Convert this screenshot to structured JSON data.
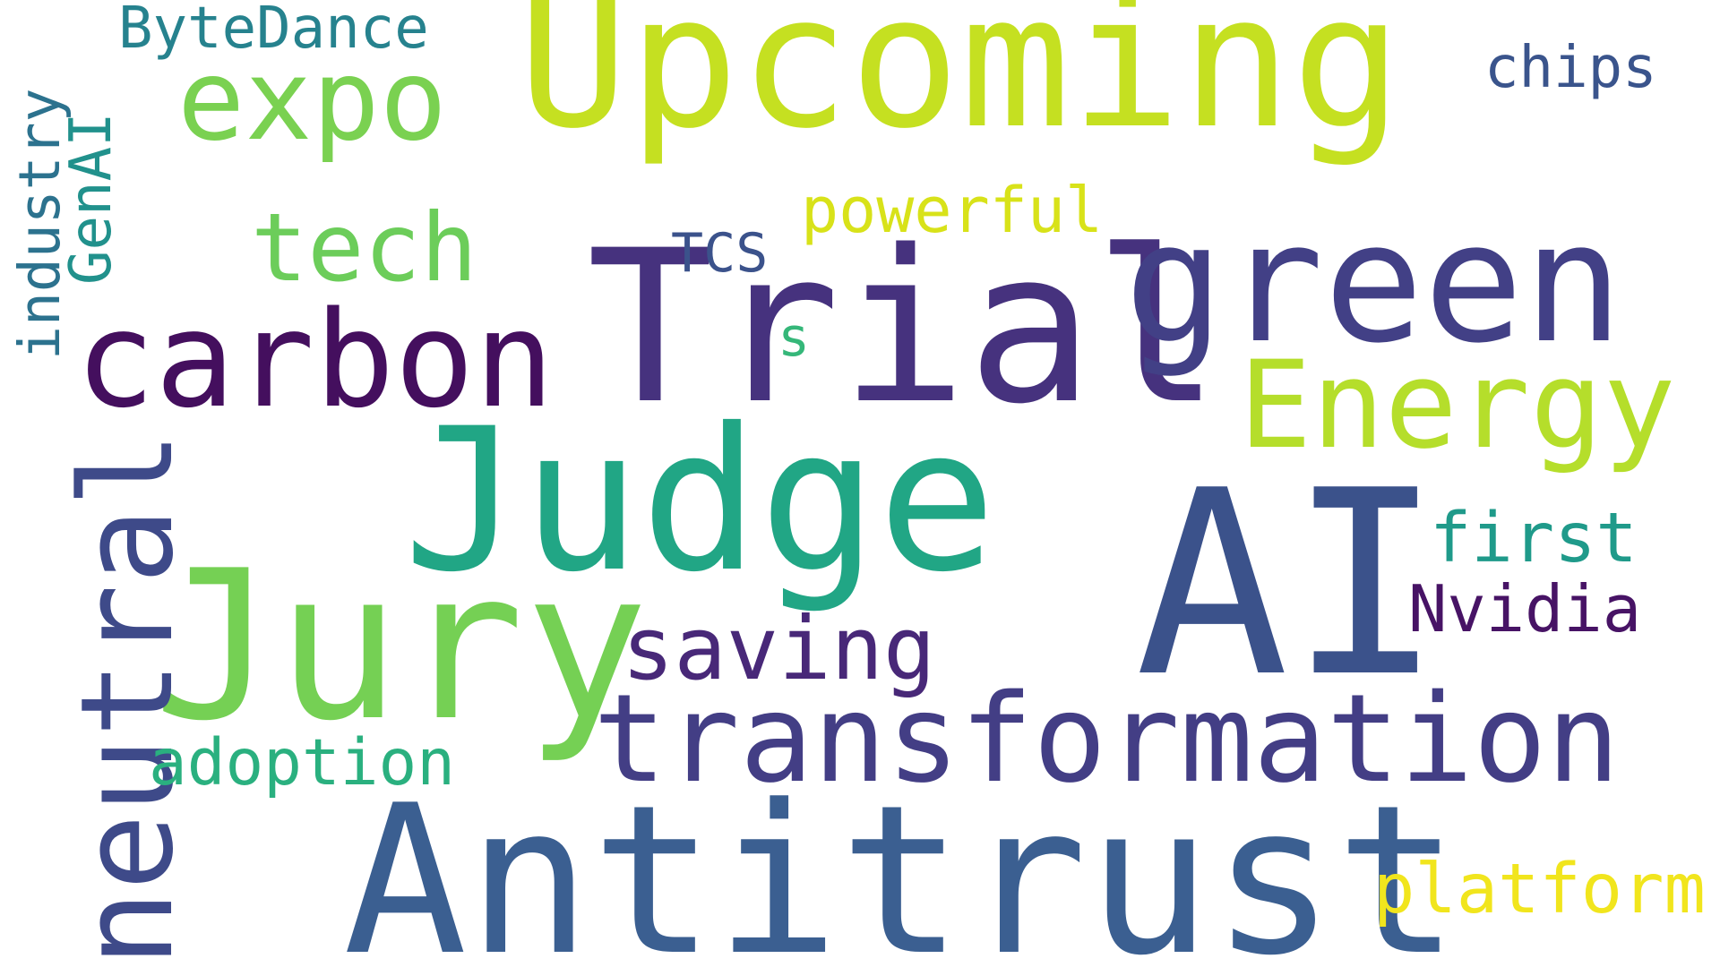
{
  "words": [
    {
      "text": "Upcoming",
      "color": "#c5e021"
    },
    {
      "text": "AI",
      "color": "#3b528b"
    },
    {
      "text": "Antitrust",
      "color": "#3b5f91"
    },
    {
      "text": "Trial",
      "color": "#46327e"
    },
    {
      "text": "green",
      "color": "#424086"
    },
    {
      "text": "Judge",
      "color": "#21a685"
    },
    {
      "text": "Jury",
      "color": "#75d054"
    },
    {
      "text": "transformation",
      "color": "#433e85"
    },
    {
      "text": "neutral",
      "color": "#3e4a89"
    },
    {
      "text": "carbon",
      "color": "#440f5e"
    },
    {
      "text": "Energy",
      "color": "#b5de2b"
    },
    {
      "text": "expo",
      "color": "#7ad151"
    },
    {
      "text": "saving",
      "color": "#482878"
    },
    {
      "text": "tech",
      "color": "#6ccd5a"
    },
    {
      "text": "platform",
      "color": "#f1e51d"
    },
    {
      "text": "powerful",
      "color": "#d8e219"
    },
    {
      "text": "first",
      "color": "#1f9a8a"
    },
    {
      "text": "Nvidia",
      "color": "#471365"
    },
    {
      "text": "adoption",
      "color": "#2ab07f"
    },
    {
      "text": "chips",
      "color": "#3a548c"
    },
    {
      "text": "ByteDance",
      "color": "#26828e"
    },
    {
      "text": "industry",
      "color": "#2c728e"
    },
    {
      "text": "GenAI",
      "color": "#21918c"
    },
    {
      "text": "TCS",
      "color": "#3b528b"
    },
    {
      "text": "s",
      "color": "#35b779"
    }
  ]
}
